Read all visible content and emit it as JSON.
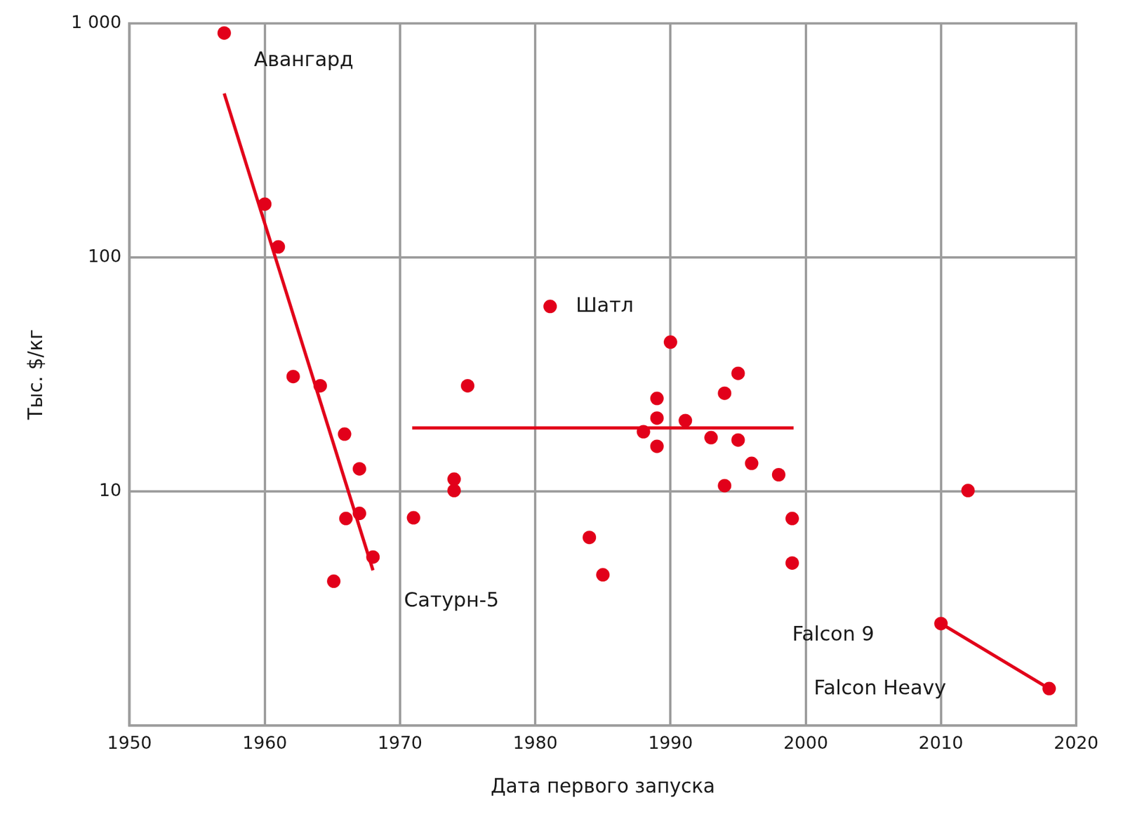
{
  "chart_data": {
    "type": "scatter",
    "x_label": "Дата первого запуска",
    "y_label": "Тыс. $/кг",
    "xlim": [
      1950,
      2020
    ],
    "xticks": [
      1950,
      1960,
      1970,
      1980,
      1990,
      2000,
      2010,
      2020
    ],
    "ylim": [
      1,
      1000
    ],
    "yticks": [
      10,
      100,
      {
        "value": 1000,
        "label": "1 000"
      }
    ],
    "log": "y",
    "grid": true,
    "color": "#e2001a",
    "series": [
      {
        "type": "scatter",
        "marker": "circle",
        "x": [
          1957.0,
          1960.0,
          1961.0,
          1962.1,
          1964.1,
          1965.1,
          1965.9,
          1966.0,
          1967.0,
          1967.0,
          1968.0,
          1971.0,
          1974.0,
          1974.0,
          1975.0,
          1981.1,
          1984.0,
          1985.0,
          1988.0,
          1989.0,
          1989.0,
          1989.0,
          1990.0,
          1991.1,
          1993.0,
          1994.0,
          1994.0,
          1995.0,
          1995.0,
          1996.0,
          1998.0,
          1999.0,
          1999.0,
          2010.0,
          2012.0,
          2018.0
        ],
        "values": [
          910,
          169,
          111,
          31,
          28.3,
          4.14,
          17.6,
          7.67,
          12.5,
          8.07,
          5.25,
          7.73,
          11.3,
          10.1,
          28.3,
          61.8,
          6.37,
          4.41,
          18.0,
          25.0,
          20.6,
          15.6,
          43.5,
          20.1,
          17.0,
          26.3,
          10.6,
          32.0,
          16.6,
          13.2,
          11.8,
          7.67,
          4.95,
          2.73,
          10.1,
          1.44
        ]
      },
      {
        "type": "line",
        "line_style": "solid",
        "x": [
          1957.0,
          1968.0
        ],
        "values": [
          502,
          4.61
        ]
      },
      {
        "type": "line",
        "line_style": "solid",
        "x": [
          1970.9,
          1999.1
        ],
        "values": [
          18.7,
          18.7
        ]
      },
      {
        "type": "line",
        "line_style": "solid",
        "x": [
          2010.0,
          2018.0
        ],
        "values": [
          2.73,
          1.44
        ]
      }
    ],
    "annotations": [
      {
        "text": "Авангард",
        "x": 1959.2,
        "y": 693
      },
      {
        "text": "Шатл",
        "x": 1983.0,
        "y": 61.8
      },
      {
        "text": "Сатурн-5",
        "x": 1970.3,
        "y": 3.39
      },
      {
        "text": "Falcon 9",
        "x": 1999.0,
        "y": 2.43
      },
      {
        "text": "Falcon Heavy",
        "x": 2000.6,
        "y": 1.43
      }
    ]
  }
}
